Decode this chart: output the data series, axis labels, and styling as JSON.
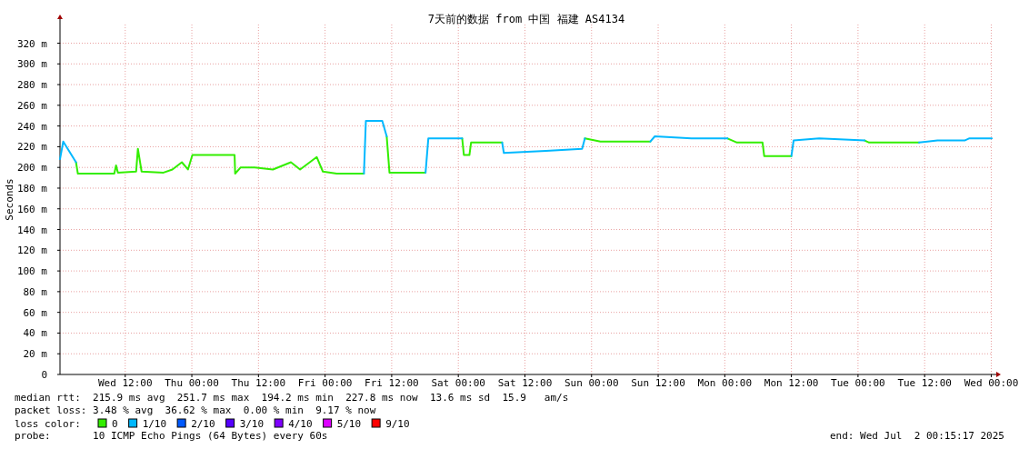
{
  "chart_data": {
    "type": "line",
    "title": "7天前的数据 from 中国 福建 AS4134",
    "ylabel": "Seconds",
    "legend_title": "loss color:",
    "legend": "bottom",
    "grid": true,
    "xlim": [
      "2025-06-25T00:15",
      "2025-07-02T00:15"
    ],
    "ylim": [
      0,
      338
    ],
    "xticks": [
      {
        "value": "2025-06-25T12:00",
        "label": "Wed 12:00"
      },
      {
        "value": "2025-06-26T00:00",
        "label": "Thu 00:00"
      },
      {
        "value": "2025-06-26T12:00",
        "label": "Thu 12:00"
      },
      {
        "value": "2025-06-27T00:00",
        "label": "Fri 00:00"
      },
      {
        "value": "2025-06-27T12:00",
        "label": "Fri 12:00"
      },
      {
        "value": "2025-06-28T00:00",
        "label": "Sat 00:00"
      },
      {
        "value": "2025-06-28T12:00",
        "label": "Sat 12:00"
      },
      {
        "value": "2025-06-29T00:00",
        "label": "Sun 00:00"
      },
      {
        "value": "2025-06-29T12:00",
        "label": "Sun 12:00"
      },
      {
        "value": "2025-06-30T00:00",
        "label": "Mon 00:00"
      },
      {
        "value": "2025-06-30T12:00",
        "label": "Mon 12:00"
      },
      {
        "value": "2025-07-01T00:00",
        "label": "Tue 00:00"
      },
      {
        "value": "2025-07-01T12:00",
        "label": "Tue 12:00"
      },
      {
        "value": "2025-07-02T00:00",
        "label": "Wed 00:00"
      }
    ],
    "yticks": [
      0,
      {
        "value": 20,
        "label": "20 m"
      },
      {
        "value": 40,
        "label": "40 m"
      },
      {
        "value": 60,
        "label": "60 m"
      },
      {
        "value": 80,
        "label": "80 m"
      },
      {
        "value": 100,
        "label": "100 m"
      },
      {
        "value": 120,
        "label": "120 m"
      },
      {
        "value": 140,
        "label": "140 m"
      },
      {
        "value": 160,
        "label": "160 m"
      },
      {
        "value": 180,
        "label": "180 m"
      },
      {
        "value": 200,
        "label": "200 m"
      },
      {
        "value": 220,
        "label": "220 m"
      },
      {
        "value": 240,
        "label": "240 m"
      },
      {
        "value": 260,
        "label": "260 m"
      },
      {
        "value": 280,
        "label": "280 m"
      },
      {
        "value": 300,
        "label": "300 m"
      },
      {
        "value": 320,
        "label": "320 m"
      }
    ],
    "x": [
      "2025-06-25T00:15",
      "2025-06-25T00:50",
      "2025-06-25T03:08",
      "2025-06-25T03:28",
      "2025-06-25T10:02",
      "2025-06-25T10:21",
      "2025-06-25T10:41",
      "2025-06-25T13:58",
      "2025-06-25T14:17",
      "2025-06-25T14:57",
      "2025-06-25T18:54",
      "2025-06-25T20:30",
      "2025-06-25T22:12",
      "2025-06-25T23:18",
      "2025-06-26T00:06",
      "2025-06-26T07:42",
      "2025-06-26T07:48",
      "2025-06-26T08:48",
      "2025-06-26T11:18",
      "2025-06-26T14:36",
      "2025-06-26T17:51",
      "2025-06-26T19:30",
      "2025-06-26T22:30",
      "2025-06-26T23:36",
      "2025-06-27T02:06",
      "2025-06-27T07:00",
      "2025-06-27T07:21",
      "2025-06-27T10:18",
      "2025-06-27T11:06",
      "2025-06-27T11:36",
      "2025-06-27T18:06",
      "2025-06-27T18:36",
      "2025-06-28T00:42",
      "2025-06-28T01:00",
      "2025-06-28T02:00",
      "2025-06-28T02:18",
      "2025-06-28T07:54",
      "2025-06-28T08:12",
      "2025-06-28T15:48",
      "2025-06-28T22:18",
      "2025-06-28T22:48",
      "2025-06-29T01:36",
      "2025-06-29T10:36",
      "2025-06-29T11:24",
      "2025-06-29T18:00",
      "2025-06-30T00:30",
      "2025-06-30T02:12",
      "2025-06-30T06:48",
      "2025-06-30T07:06",
      "2025-06-30T12:00",
      "2025-06-30T12:24",
      "2025-06-30T17:00",
      "2025-07-01T01:12",
      "2025-07-01T02:00",
      "2025-07-01T11:00",
      "2025-07-01T14:18",
      "2025-07-01T19:12",
      "2025-07-01T20:00",
      "2025-07-02T00:06"
    ],
    "series": [
      {
        "name": "0",
        "color": "#33ee00",
        "values": [
          null,
          null,
          205,
          194,
          194,
          202,
          195,
          196,
          218,
          196,
          195,
          198,
          205,
          198,
          212,
          212,
          194,
          200,
          200,
          198,
          205,
          198,
          210,
          196,
          194,
          194,
          null,
          null,
          230,
          195,
          195,
          null,
          228,
          212,
          212,
          224,
          224,
          null,
          null,
          null,
          228,
          225,
          225,
          null,
          null,
          228,
          224,
          224,
          211,
          211,
          null,
          null,
          226,
          224,
          224,
          null,
          null,
          null,
          null
        ]
      },
      {
        "name": "1/10",
        "color": "#00b8ff",
        "values": [
          208,
          225,
          205,
          null,
          null,
          null,
          null,
          null,
          null,
          null,
          null,
          null,
          null,
          null,
          null,
          null,
          null,
          null,
          null,
          null,
          null,
          null,
          null,
          null,
          null,
          194,
          245,
          245,
          230,
          null,
          195,
          228,
          228,
          null,
          null,
          null,
          224,
          214,
          216,
          218,
          228,
          null,
          225,
          230,
          228,
          228,
          null,
          null,
          null,
          211,
          226,
          228,
          226,
          null,
          224,
          226,
          226,
          228,
          228
        ]
      },
      {
        "name": "2/10",
        "color": "#0059ff",
        "values": [
          null,
          null,
          null,
          null,
          null,
          null,
          null,
          null,
          null,
          null,
          null,
          null,
          null,
          null,
          null,
          null,
          null,
          null,
          null,
          null,
          null,
          null,
          null,
          null,
          null,
          null,
          null,
          null,
          null,
          null,
          null,
          null,
          null,
          null,
          null,
          null,
          null,
          null,
          null,
          null,
          null,
          null,
          null,
          null,
          null,
          null,
          null,
          null,
          null,
          null,
          null,
          null,
          null,
          null,
          null,
          null,
          null,
          null,
          null
        ]
      },
      {
        "name": "3/10",
        "color": "#5500ff",
        "values": [
          null,
          null,
          null,
          null,
          null,
          null,
          null,
          null,
          null,
          null,
          null,
          null,
          null,
          null,
          null,
          null,
          null,
          null,
          null,
          null,
          null,
          null,
          null,
          null,
          null,
          null,
          null,
          null,
          null,
          null,
          null,
          null,
          null,
          null,
          null,
          null,
          null,
          null,
          null,
          null,
          null,
          null,
          null,
          null,
          null,
          null,
          null,
          null,
          null,
          null,
          null,
          null,
          null,
          null,
          null,
          null,
          null,
          null,
          null
        ]
      },
      {
        "name": "4/10",
        "color": "#7e00ff",
        "values": [
          null,
          null,
          null,
          null,
          null,
          null,
          null,
          null,
          null,
          null,
          null,
          null,
          null,
          null,
          null,
          null,
          null,
          null,
          null,
          null,
          null,
          null,
          null,
          null,
          null,
          null,
          null,
          null,
          null,
          null,
          null,
          null,
          null,
          null,
          null,
          null,
          null,
          null,
          null,
          null,
          null,
          null,
          null,
          null,
          null,
          null,
          null,
          null,
          null,
          null,
          null,
          null,
          null,
          null,
          null,
          null,
          null,
          null,
          null
        ]
      },
      {
        "name": "5/10",
        "color": "#dd00ff",
        "values": [
          null,
          null,
          null,
          null,
          null,
          null,
          null,
          null,
          null,
          null,
          null,
          null,
          null,
          null,
          null,
          null,
          null,
          null,
          null,
          null,
          null,
          null,
          null,
          null,
          null,
          null,
          null,
          null,
          null,
          null,
          null,
          null,
          null,
          null,
          null,
          null,
          null,
          null,
          null,
          null,
          null,
          null,
          null,
          null,
          null,
          null,
          null,
          null,
          null,
          null,
          null,
          null,
          null,
          null,
          null,
          null,
          null,
          null,
          null
        ]
      },
      {
        "name": "9/10",
        "color": "#ff0000",
        "values": [
          null,
          null,
          null,
          null,
          null,
          null,
          null,
          null,
          null,
          null,
          null,
          null,
          null,
          null,
          null,
          null,
          null,
          null,
          null,
          null,
          null,
          null,
          null,
          null,
          null,
          null,
          null,
          null,
          null,
          null,
          null,
          null,
          null,
          null,
          null,
          null,
          null,
          null,
          null,
          null,
          null,
          null,
          null,
          null,
          null,
          null,
          null,
          null,
          null,
          null,
          null,
          null,
          null,
          null,
          null,
          null,
          null,
          null,
          null
        ]
      }
    ],
    "annotations": [
      "median rtt:  215.9 ms avg  251.7 ms max  194.2 ms min  227.8 ms now  13.6 ms sd  15.9   am/s",
      "packet loss: 3.48 % avg  36.62 % max  0.00 % min  9.17 % now",
      "probe:       10 ICMP Echo Pings (64 Bytes) every 60s",
      "end: Wed Jul  2 00:15:17 2025"
    ]
  }
}
